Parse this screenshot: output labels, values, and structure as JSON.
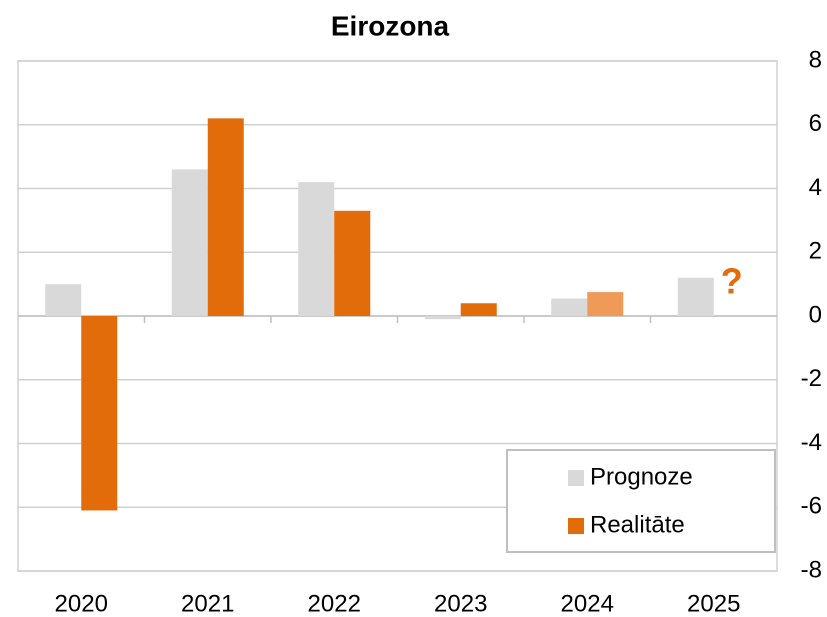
{
  "chart_data": {
    "type": "bar",
    "title": "Eirozona",
    "categories": [
      "2020",
      "2021",
      "2022",
      "2023",
      "2024",
      "2025"
    ],
    "series": [
      {
        "name": "Prognoze",
        "color": "#d9d9d9",
        "values": [
          1.0,
          4.6,
          4.2,
          -0.1,
          0.55,
          1.2
        ]
      },
      {
        "name": "Realitāte",
        "color": "#e36c0a",
        "values": [
          -6.1,
          6.2,
          3.3,
          0.4,
          0.75,
          null
        ],
        "colors": [
          "#e36c0a",
          "#e36c0a",
          "#e36c0a",
          "#e36c0a",
          "#f09a5a",
          "#e36c0a"
        ]
      }
    ],
    "annotation": "?",
    "annotation_color": "#e36c0a",
    "ylim": [
      -8,
      8
    ],
    "yticks": [
      -8,
      -6,
      -4,
      -2,
      0,
      2,
      4,
      6,
      8
    ],
    "y_axis_side": "right",
    "grid": true,
    "legend": "lower right"
  }
}
